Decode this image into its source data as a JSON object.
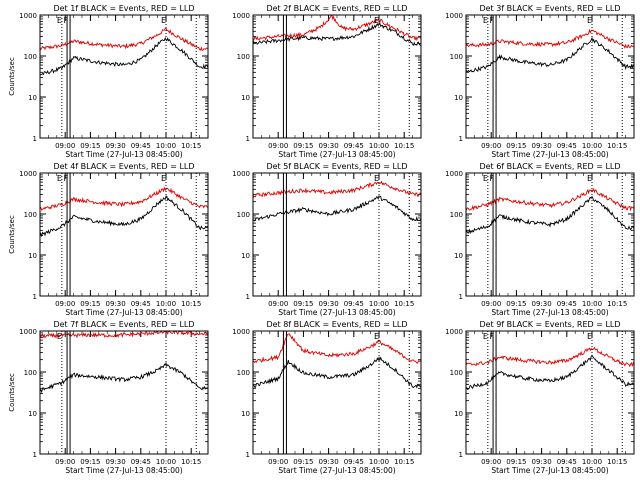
{
  "chart_data": [
    {
      "type": "line",
      "title": "Det 1f BLACK = Events, RED = LLD",
      "xlabel": "Start Time (27-Jul-13 08:45:00)",
      "ylabel": "Counts/sec",
      "x_ticks": [
        "09:00",
        "09:15",
        "09:30",
        "09:45",
        "10:00",
        "10:15"
      ],
      "y_ticks": [
        "1",
        "10",
        "100",
        "1000"
      ],
      "y_scale": "log",
      "xlim": [
        "08:45",
        "10:25"
      ],
      "ylim": [
        1,
        1000
      ],
      "vertical_markers": [
        {
          "time": "08:58",
          "style": "dotted",
          "label": "E"
        },
        {
          "time": "09:02",
          "style": "solid-pair",
          "label": "F"
        },
        {
          "time": "10:00",
          "style": "dotted",
          "label": "E"
        },
        {
          "time": "10:18",
          "style": "dotted",
          "label": ""
        }
      ],
      "series": [
        {
          "color": "#e00000",
          "times": [
            "08:45",
            "08:58",
            "09:05",
            "09:20",
            "09:35",
            "09:45",
            "09:55",
            "10:00",
            "10:10",
            "10:20"
          ],
          "values": [
            150,
            180,
            230,
            190,
            170,
            200,
            330,
            450,
            250,
            150
          ]
        },
        {
          "color": "#000000",
          "times": [
            "08:45",
            "08:58",
            "09:05",
            "09:20",
            "09:35",
            "09:45",
            "09:55",
            "10:00",
            "10:10",
            "10:20"
          ],
          "values": [
            35,
            50,
            90,
            70,
            60,
            80,
            190,
            270,
            130,
            55
          ]
        }
      ]
    },
    {
      "type": "line",
      "title": "Det 2f BLACK = Events, RED = LLD",
      "xlabel": "Start Time (27-Jul-13 08:45:00)",
      "ylabel": "",
      "x_ticks": [
        "09:00",
        "09:15",
        "09:30",
        "09:45",
        "10:00",
        "10:15"
      ],
      "y_ticks": [
        "1",
        "10",
        "100",
        "1000"
      ],
      "y_scale": "log",
      "xlim": [
        "08:45",
        "10:25"
      ],
      "ylim": [
        1,
        1000
      ],
      "vertical_markers": [
        {
          "time": "09:04",
          "style": "solid-pair",
          "label": ""
        },
        {
          "time": "10:00",
          "style": "dotted",
          "label": "E"
        },
        {
          "time": "10:18",
          "style": "dotted",
          "label": ""
        }
      ],
      "series": [
        {
          "color": "#e00000",
          "times": [
            "08:45",
            "09:00",
            "09:15",
            "09:25",
            "09:32",
            "09:38",
            "09:45",
            "10:00",
            "10:10",
            "10:20"
          ],
          "values": [
            260,
            300,
            330,
            500,
            950,
            480,
            450,
            750,
            450,
            270
          ]
        },
        {
          "color": "#000000",
          "times": [
            "08:45",
            "09:00",
            "09:15",
            "09:30",
            "09:45",
            "10:00",
            "10:10",
            "10:20"
          ],
          "values": [
            200,
            240,
            280,
            260,
            300,
            600,
            380,
            200
          ]
        }
      ]
    },
    {
      "type": "line",
      "title": "Det 3f BLACK = Events, RED = LLD",
      "xlabel": "Start Time (27-Jul-13 08:45:00)",
      "ylabel": "",
      "x_ticks": [
        "09:00",
        "09:15",
        "09:30",
        "09:45",
        "10:00",
        "10:15"
      ],
      "y_ticks": [
        "1",
        "10",
        "100",
        "1000"
      ],
      "y_scale": "log",
      "xlim": [
        "08:45",
        "10:25"
      ],
      "ylim": [
        1,
        1000
      ],
      "vertical_markers": [
        {
          "time": "08:58",
          "style": "dotted",
          "label": "E"
        },
        {
          "time": "09:02",
          "style": "solid-pair",
          "label": "F"
        },
        {
          "time": "10:00",
          "style": "dotted",
          "label": "E"
        },
        {
          "time": "10:18",
          "style": "dotted",
          "label": ""
        }
      ],
      "series": [
        {
          "color": "#e00000",
          "times": [
            "08:45",
            "08:58",
            "09:05",
            "09:20",
            "09:35",
            "09:45",
            "09:55",
            "10:00",
            "10:10",
            "10:20"
          ],
          "values": [
            180,
            190,
            230,
            200,
            190,
            210,
            320,
            420,
            260,
            170
          ]
        },
        {
          "color": "#000000",
          "times": [
            "08:45",
            "08:58",
            "09:05",
            "09:20",
            "09:35",
            "09:45",
            "09:55",
            "10:00",
            "10:10",
            "10:20"
          ],
          "values": [
            40,
            55,
            95,
            70,
            60,
            80,
            180,
            260,
            130,
            55
          ]
        }
      ]
    },
    {
      "type": "line",
      "title": "Det 4f BLACK = Events, RED = LLD",
      "xlabel": "Start Time (27-Jul-13 08:45:00)",
      "ylabel": "Counts/sec",
      "x_ticks": [
        "09:00",
        "09:15",
        "09:30",
        "09:45",
        "10:00",
        "10:15"
      ],
      "y_ticks": [
        "1",
        "10",
        "100",
        "1000"
      ],
      "y_scale": "log",
      "xlim": [
        "08:45",
        "10:25"
      ],
      "ylim": [
        1,
        1000
      ],
      "vertical_markers": [
        {
          "time": "08:58",
          "style": "dotted",
          "label": "E"
        },
        {
          "time": "09:02",
          "style": "solid-pair",
          "label": "F"
        },
        {
          "time": "10:00",
          "style": "dotted",
          "label": "E"
        },
        {
          "time": "10:18",
          "style": "dotted",
          "label": ""
        }
      ],
      "series": [
        {
          "color": "#e00000",
          "times": [
            "08:45",
            "08:58",
            "09:05",
            "09:20",
            "09:35",
            "09:45",
            "09:55",
            "10:00",
            "10:10",
            "10:20"
          ],
          "values": [
            130,
            170,
            230,
            190,
            170,
            200,
            330,
            430,
            240,
            150
          ]
        },
        {
          "color": "#000000",
          "times": [
            "08:45",
            "08:58",
            "09:05",
            "09:20",
            "09:35",
            "09:45",
            "09:55",
            "10:00",
            "10:10",
            "10:20"
          ],
          "values": [
            30,
            50,
            85,
            65,
            55,
            75,
            180,
            260,
            120,
            45
          ]
        }
      ]
    },
    {
      "type": "line",
      "title": "Det 5f BLACK = Events, RED = LLD",
      "xlabel": "Start Time (27-Jul-13 08:45:00)",
      "ylabel": "",
      "x_ticks": [
        "09:00",
        "09:15",
        "09:30",
        "09:45",
        "10:00",
        "10:15"
      ],
      "y_ticks": [
        "1",
        "10",
        "100",
        "1000"
      ],
      "y_scale": "log",
      "xlim": [
        "08:45",
        "10:25"
      ],
      "ylim": [
        1,
        1000
      ],
      "vertical_markers": [
        {
          "time": "09:04",
          "style": "solid-pair",
          "label": ""
        },
        {
          "time": "10:00",
          "style": "dotted",
          "label": "E"
        },
        {
          "time": "10:18",
          "style": "dotted",
          "label": ""
        }
      ],
      "series": [
        {
          "color": "#e00000",
          "times": [
            "08:45",
            "09:00",
            "09:15",
            "09:30",
            "09:45",
            "10:00",
            "10:10",
            "10:20"
          ],
          "values": [
            280,
            330,
            380,
            330,
            380,
            600,
            420,
            300
          ]
        },
        {
          "color": "#000000",
          "times": [
            "08:45",
            "09:00",
            "09:15",
            "09:30",
            "09:45",
            "10:00",
            "10:10",
            "10:20"
          ],
          "values": [
            70,
            100,
            130,
            100,
            130,
            260,
            150,
            75
          ]
        }
      ]
    },
    {
      "type": "line",
      "title": "Det 6f BLACK = Events, RED = LLD",
      "xlabel": "Start Time (27-Jul-13 08:45:00)",
      "ylabel": "",
      "x_ticks": [
        "09:00",
        "09:15",
        "09:30",
        "09:45",
        "10:00",
        "10:15"
      ],
      "y_ticks": [
        "1",
        "10",
        "100",
        "1000"
      ],
      "y_scale": "log",
      "xlim": [
        "08:45",
        "10:25"
      ],
      "ylim": [
        1,
        1000
      ],
      "vertical_markers": [
        {
          "time": "08:58",
          "style": "dotted",
          "label": "E"
        },
        {
          "time": "09:02",
          "style": "solid-pair",
          "label": "F"
        },
        {
          "time": "10:00",
          "style": "dotted",
          "label": "E"
        },
        {
          "time": "10:18",
          "style": "dotted",
          "label": ""
        }
      ],
      "series": [
        {
          "color": "#e00000",
          "times": [
            "08:45",
            "08:58",
            "09:05",
            "09:20",
            "09:35",
            "09:45",
            "09:55",
            "10:00",
            "10:10",
            "10:20"
          ],
          "values": [
            130,
            170,
            230,
            190,
            160,
            190,
            300,
            400,
            230,
            140
          ]
        },
        {
          "color": "#000000",
          "times": [
            "08:45",
            "08:58",
            "09:05",
            "09:20",
            "09:35",
            "09:45",
            "09:55",
            "10:00",
            "10:10",
            "10:20"
          ],
          "values": [
            35,
            50,
            90,
            65,
            55,
            75,
            170,
            250,
            120,
            45
          ]
        }
      ]
    },
    {
      "type": "line",
      "title": "Det 7f BLACK = Events, RED = LLD",
      "xlabel": "Start Time (27-Jul-13 08:45:00)",
      "ylabel": "Counts/sec",
      "x_ticks": [
        "09:00",
        "09:15",
        "09:30",
        "09:45",
        "10:00",
        "10:15"
      ],
      "y_ticks": [
        "1",
        "10",
        "100",
        "1000"
      ],
      "y_scale": "log",
      "xlim": [
        "08:45",
        "10:25"
      ],
      "ylim": [
        1,
        1000
      ],
      "vertical_markers": [
        {
          "time": "08:58",
          "style": "dotted",
          "label": "E"
        },
        {
          "time": "09:02",
          "style": "solid-pair",
          "label": ""
        },
        {
          "time": "10:00",
          "style": "dotted",
          "label": ""
        },
        {
          "time": "10:18",
          "style": "dotted",
          "label": ""
        }
      ],
      "series": [
        {
          "color": "#e00000",
          "times": [
            "08:45",
            "09:00",
            "09:15",
            "09:30",
            "09:45",
            "10:00",
            "10:10",
            "10:20"
          ],
          "values": [
            750,
            780,
            800,
            780,
            850,
            950,
            900,
            850
          ]
        },
        {
          "color": "#000000",
          "times": [
            "08:45",
            "08:58",
            "09:05",
            "09:20",
            "09:35",
            "09:45",
            "09:55",
            "10:00",
            "10:10",
            "10:20"
          ],
          "values": [
            35,
            55,
            85,
            75,
            65,
            75,
            110,
            150,
            90,
            40
          ]
        }
      ]
    },
    {
      "type": "line",
      "title": "Det 8f BLACK = Events, RED = LLD",
      "xlabel": "Start Time (27-Jul-13 08:45:00)",
      "ylabel": "",
      "x_ticks": [
        "09:00",
        "09:15",
        "09:30",
        "09:45",
        "10:00",
        "10:15"
      ],
      "y_ticks": [
        "1",
        "10",
        "100",
        "1000"
      ],
      "y_scale": "log",
      "xlim": [
        "08:45",
        "10:25"
      ],
      "ylim": [
        1,
        1000
      ],
      "vertical_markers": [
        {
          "time": "09:04",
          "style": "solid-pair",
          "label": ""
        },
        {
          "time": "10:00",
          "style": "dotted",
          "label": "E"
        },
        {
          "time": "10:18",
          "style": "dotted",
          "label": ""
        }
      ],
      "series": [
        {
          "color": "#e00000",
          "times": [
            "08:45",
            "09:00",
            "09:06",
            "09:15",
            "09:30",
            "09:45",
            "09:55",
            "10:00",
            "10:10",
            "10:20"
          ],
          "values": [
            180,
            230,
            900,
            330,
            250,
            280,
            420,
            550,
            320,
            180
          ]
        },
        {
          "color": "#000000",
          "times": [
            "08:45",
            "09:00",
            "09:06",
            "09:15",
            "09:30",
            "09:45",
            "09:55",
            "10:00",
            "10:10",
            "10:20"
          ],
          "values": [
            45,
            70,
            180,
            95,
            75,
            85,
            150,
            220,
            110,
            45
          ]
        }
      ]
    },
    {
      "type": "line",
      "title": "Det 9f BLACK = Events, RED = LLD",
      "xlabel": "Start Time (27-Jul-13 08:45:00)",
      "ylabel": "",
      "x_ticks": [
        "09:00",
        "09:15",
        "09:30",
        "09:45",
        "10:00",
        "10:15"
      ],
      "y_ticks": [
        "1",
        "10",
        "100",
        "1000"
      ],
      "y_scale": "log",
      "xlim": [
        "08:45",
        "10:25"
      ],
      "ylim": [
        1,
        1000
      ],
      "vertical_markers": [
        {
          "time": "08:58",
          "style": "dotted",
          "label": "E"
        },
        {
          "time": "09:02",
          "style": "solid-pair",
          "label": "F"
        },
        {
          "time": "10:00",
          "style": "dotted",
          "label": "E"
        },
        {
          "time": "10:18",
          "style": "dotted",
          "label": ""
        }
      ],
      "series": [
        {
          "color": "#e00000",
          "times": [
            "08:45",
            "08:58",
            "09:05",
            "09:20",
            "09:35",
            "09:45",
            "09:55",
            "10:00",
            "10:10",
            "10:20"
          ],
          "values": [
            150,
            170,
            230,
            190,
            170,
            190,
            300,
            390,
            230,
            150
          ]
        },
        {
          "color": "#000000",
          "times": [
            "08:45",
            "08:58",
            "09:05",
            "09:20",
            "09:35",
            "09:45",
            "09:55",
            "10:00",
            "10:10",
            "10:20"
          ],
          "values": [
            40,
            55,
            95,
            70,
            60,
            75,
            160,
            230,
            110,
            50
          ]
        }
      ]
    }
  ]
}
